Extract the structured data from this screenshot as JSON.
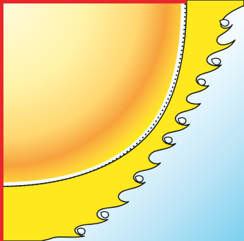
{
  "illustration": {
    "subject": "sun-corner",
    "colors": {
      "frame": "#e8262c",
      "sun_core": "#fffbe0",
      "sun_mid": "#ffe95a",
      "sun_outer": "#f7a23c",
      "flare": "#ffe81e",
      "sky_light": "#f3fbff",
      "sky_blue": "#7cd0ee",
      "outline": "#1a1a1a"
    }
  }
}
